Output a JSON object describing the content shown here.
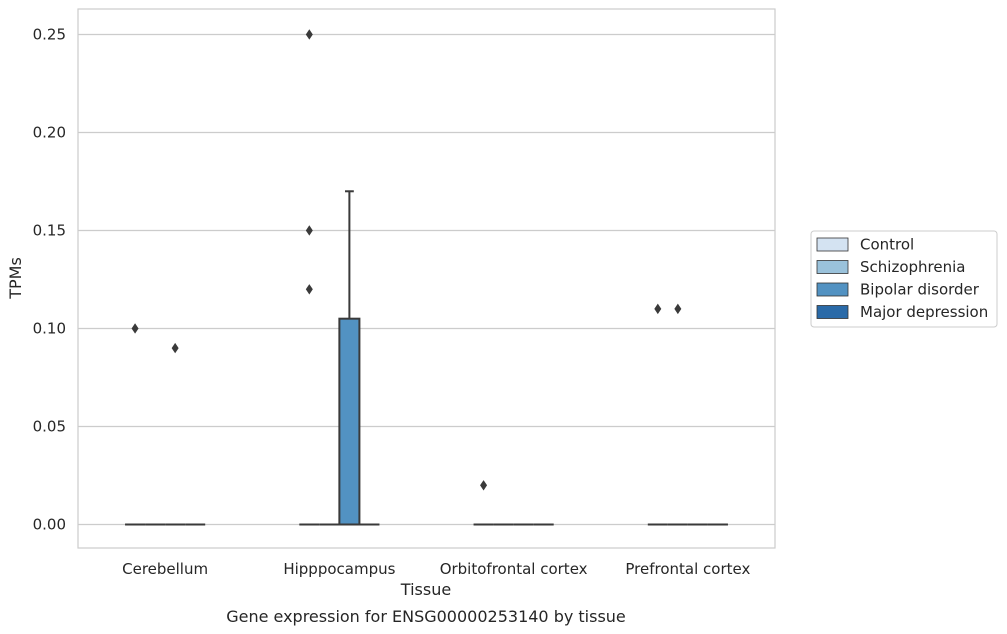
{
  "chart_data": {
    "type": "box",
    "title": "Gene expression for ENSG00000253140 by tissue",
    "xlabel": "Tissue",
    "ylabel": "TPMs",
    "categories": [
      "Cerebellum",
      "Hipppocampus",
      "Orbitofrontal cortex",
      "Prefrontal cortex"
    ],
    "ylim": [
      -0.012,
      0.263
    ],
    "yticks": [
      0.0,
      0.05,
      0.1,
      0.15,
      0.2,
      0.25
    ],
    "ytick_labels": [
      "0.00",
      "0.05",
      "0.10",
      "0.15",
      "0.20",
      "0.25"
    ],
    "grid": true,
    "legend_position": "right",
    "series": [
      {
        "name": "Control",
        "color": "#d4e3f2",
        "boxes": [
          {
            "q1": 0,
            "median": 0,
            "q3": 0,
            "whisker_low": 0,
            "whisker_high": 0,
            "outliers": [
              0.1
            ]
          },
          {
            "q1": 0,
            "median": 0,
            "q3": 0,
            "whisker_low": 0,
            "whisker_high": 0,
            "outliers": [
              0.25,
              0.15,
              0.12
            ]
          },
          {
            "q1": 0,
            "median": 0,
            "q3": 0,
            "whisker_low": 0,
            "whisker_high": 0,
            "outliers": [
              0.02
            ]
          },
          {
            "q1": 0,
            "median": 0,
            "q3": 0,
            "whisker_low": 0,
            "whisker_high": 0,
            "outliers": [
              0.11
            ]
          }
        ]
      },
      {
        "name": "Schizophrenia",
        "color": "#9ac2db",
        "boxes": [
          {
            "q1": 0,
            "median": 0,
            "q3": 0,
            "whisker_low": 0,
            "whisker_high": 0,
            "outliers": []
          },
          {
            "q1": 0,
            "median": 0,
            "q3": 0,
            "whisker_low": 0,
            "whisker_high": 0,
            "outliers": []
          },
          {
            "q1": 0,
            "median": 0,
            "q3": 0,
            "whisker_low": 0,
            "whisker_high": 0,
            "outliers": []
          },
          {
            "q1": 0,
            "median": 0,
            "q3": 0,
            "whisker_low": 0,
            "whisker_high": 0,
            "outliers": [
              0.11
            ]
          }
        ]
      },
      {
        "name": "Bipolar disorder",
        "color": "#5292c2",
        "boxes": [
          {
            "q1": 0,
            "median": 0,
            "q3": 0,
            "whisker_low": 0,
            "whisker_high": 0,
            "outliers": [
              0.09
            ]
          },
          {
            "q1": 0,
            "median": 0,
            "q3": 0.105,
            "whisker_low": 0,
            "whisker_high": 0.17,
            "outliers": []
          },
          {
            "q1": 0,
            "median": 0,
            "q3": 0,
            "whisker_low": 0,
            "whisker_high": 0,
            "outliers": []
          },
          {
            "q1": 0,
            "median": 0,
            "q3": 0,
            "whisker_low": 0,
            "whisker_high": 0,
            "outliers": []
          }
        ]
      },
      {
        "name": "Major depression",
        "color": "#2a6aa8",
        "boxes": [
          {
            "q1": 0,
            "median": 0,
            "q3": 0,
            "whisker_low": 0,
            "whisker_high": 0,
            "outliers": []
          },
          {
            "q1": 0,
            "median": 0,
            "q3": 0,
            "whisker_low": 0,
            "whisker_high": 0,
            "outliers": []
          },
          {
            "q1": 0,
            "median": 0,
            "q3": 0,
            "whisker_low": 0,
            "whisker_high": 0,
            "outliers": []
          },
          {
            "q1": 0,
            "median": 0,
            "q3": 0,
            "whisker_low": 0,
            "whisker_high": 0,
            "outliers": []
          }
        ]
      }
    ]
  },
  "colors": {
    "grid": "#cccccc",
    "frame": "#cccccc",
    "line": "#3a3a3a",
    "outlier": "#3a3a3a"
  }
}
